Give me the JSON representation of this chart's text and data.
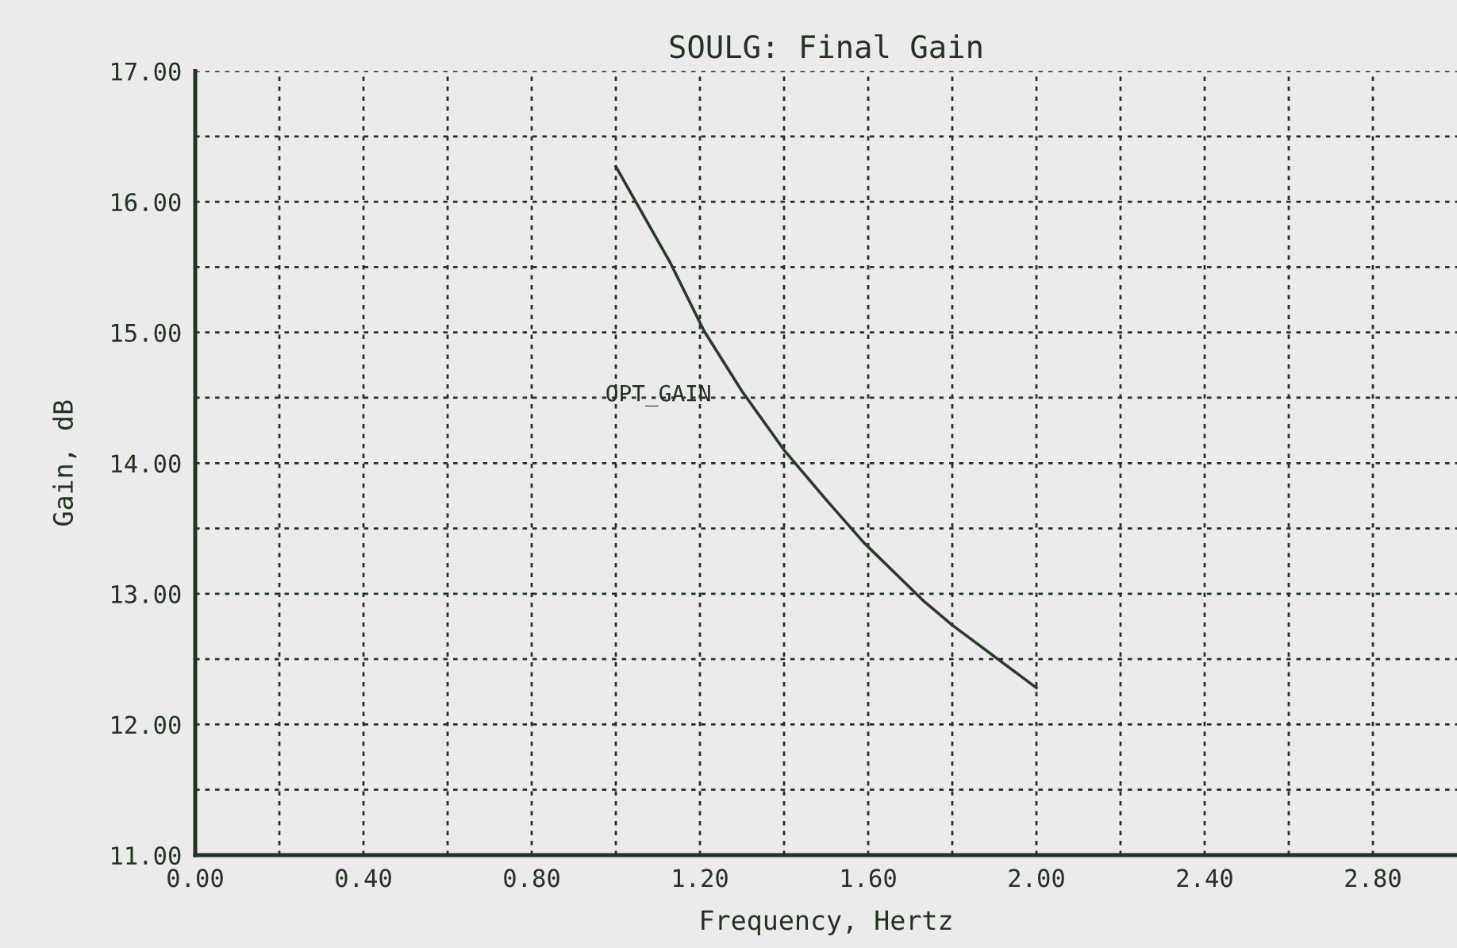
{
  "chart_data": {
    "type": "line",
    "title": "SOULG: Final Gain",
    "xlabel": "Frequency, Hertz",
    "ylabel": "Gain, dB",
    "x": [
      1.0,
      1.13,
      1.21,
      1.3,
      1.4,
      1.5,
      1.59,
      1.73,
      1.8,
      2.0
    ],
    "series": [
      {
        "name": "OPT_GAIN",
        "color": "#2a3a2a",
        "values": [
          16.27,
          15.53,
          15.01,
          14.55,
          14.1,
          13.72,
          13.39,
          12.95,
          12.76,
          12.28
        ]
      }
    ],
    "xlim": [
      0,
      3.0
    ],
    "ylim": [
      11,
      17
    ],
    "xticks": [
      {
        "value": 0,
        "label": "0.00"
      },
      {
        "value": 0.2,
        "label": null
      },
      {
        "value": 0.4,
        "label": "0.40"
      },
      {
        "value": 0.6,
        "label": null
      },
      {
        "value": 0.8,
        "label": "0.80"
      },
      {
        "value": 1.0,
        "label": null
      },
      {
        "value": 1.2,
        "label": "1.20"
      },
      {
        "value": 1.4,
        "label": null
      },
      {
        "value": 1.6,
        "label": "1.60"
      },
      {
        "value": 1.8,
        "label": null
      },
      {
        "value": 2.0,
        "label": "2.00"
      },
      {
        "value": 2.2,
        "label": null
      },
      {
        "value": 2.4,
        "label": "2.40"
      },
      {
        "value": 2.6,
        "label": null
      },
      {
        "value": 2.8,
        "label": "2.80"
      }
    ],
    "yticks": [
      {
        "value": 11,
        "label": "11.00"
      },
      {
        "value": 11.5,
        "label": null
      },
      {
        "value": 12,
        "label": "12.00"
      },
      {
        "value": 12.5,
        "label": null
      },
      {
        "value": 13,
        "label": "13.00"
      },
      {
        "value": 13.5,
        "label": null
      },
      {
        "value": 14,
        "label": "14.00"
      },
      {
        "value": 14.5,
        "label": null
      },
      {
        "value": 15,
        "label": "15.00"
      },
      {
        "value": 15.5,
        "label": null
      },
      {
        "value": 16,
        "label": "16.00"
      },
      {
        "value": 16.5,
        "label": null
      },
      {
        "value": 17,
        "label": "17.00"
      }
    ],
    "grid": true,
    "legend": false,
    "marker": "none",
    "line_style": "solid"
  }
}
